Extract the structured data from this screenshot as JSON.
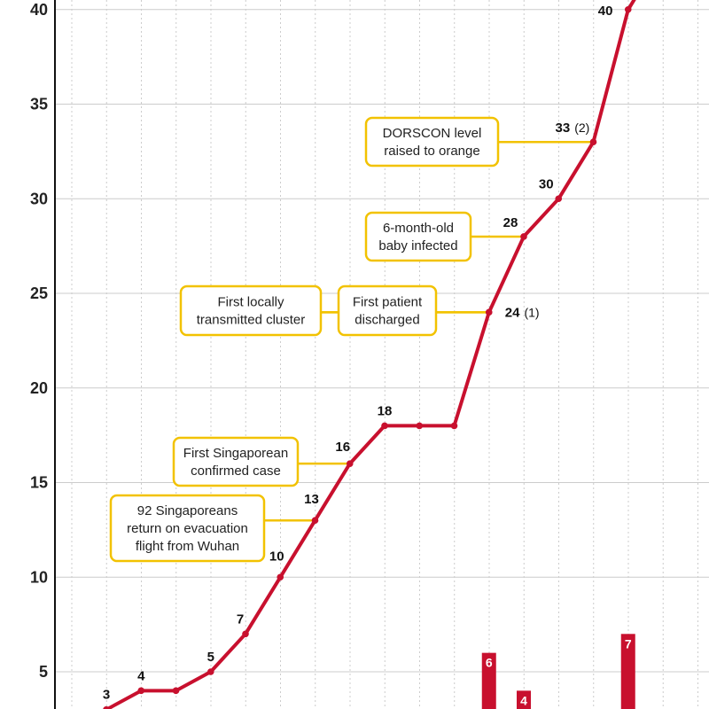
{
  "chart_data": {
    "type": "line",
    "title": "",
    "xlabel": "",
    "ylabel": "",
    "ylim": [
      2,
      41
    ],
    "yticks": [
      5,
      10,
      15,
      20,
      25,
      30,
      35,
      40
    ],
    "grid": {
      "horizontal": true,
      "vertical": "dotted"
    },
    "colors": {
      "line": "#c8102e",
      "point": "#c8102e",
      "bar": "#c8102e",
      "callout_border": "#f2c200",
      "grid": "#cccccc"
    },
    "series": [
      {
        "values": [
          {
            "i": 0,
            "y": 3,
            "label": "3"
          },
          {
            "i": 1,
            "y": 4,
            "label": "4"
          },
          {
            "i": 2,
            "y": 4
          },
          {
            "i": 3,
            "y": 5,
            "label": "5"
          },
          {
            "i": 4,
            "y": 7,
            "label": "7"
          },
          {
            "i": 5,
            "y": 10,
            "label": "10"
          },
          {
            "i": 6,
            "y": 13,
            "label": "13"
          },
          {
            "i": 7,
            "y": 16,
            "label": "16"
          },
          {
            "i": 8,
            "y": 18,
            "label": "18"
          },
          {
            "i": 9,
            "y": 18
          },
          {
            "i": 10,
            "y": 18
          },
          {
            "i": 11,
            "y": 24,
            "label": "24",
            "sublabel": "(1)"
          },
          {
            "i": 12,
            "y": 28,
            "label": "28"
          },
          {
            "i": 13,
            "y": 30,
            "label": "30"
          },
          {
            "i": 14,
            "y": 33,
            "label": "33",
            "sublabel": "(2)"
          },
          {
            "i": 15,
            "y": 40,
            "label": "40"
          },
          {
            "i": 16,
            "y": 43
          }
        ]
      }
    ],
    "bars": [
      {
        "i": 11,
        "value": 6,
        "label": "6"
      },
      {
        "i": 12,
        "value": 4,
        "label": "4"
      },
      {
        "i": 15,
        "value": 7,
        "label": "7"
      }
    ],
    "annotations": [
      {
        "point": 6,
        "lines": [
          "92 Singaporeans",
          "return on evacuation",
          "flight from Wuhan"
        ]
      },
      {
        "point": 7,
        "lines": [
          "First Singaporean",
          "confirmed case"
        ]
      },
      {
        "point": 11,
        "lines": [
          "First patient",
          "discharged"
        ]
      },
      {
        "point": 11,
        "lines": [
          "First locally",
          "transmitted cluster"
        ]
      },
      {
        "point": 12,
        "lines": [
          "6-month-old",
          "baby infected"
        ]
      },
      {
        "point": 14,
        "lines": [
          "DORSCON level",
          "raised to orange"
        ]
      }
    ]
  }
}
